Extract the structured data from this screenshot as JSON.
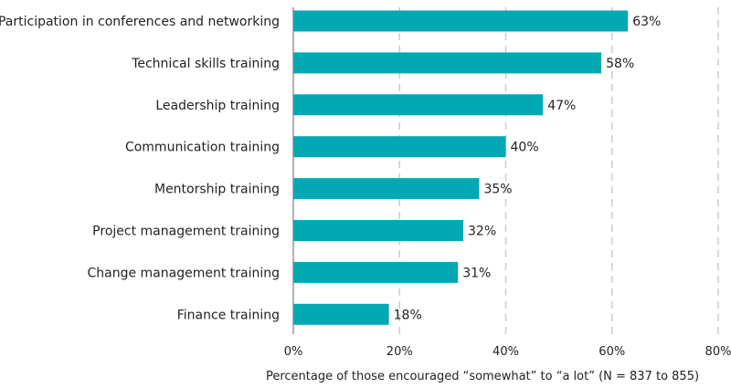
{
  "chart_data": {
    "type": "bar",
    "orientation": "horizontal",
    "categories": [
      "Participation in conferences and networking",
      "Technical skills training",
      "Leadership training",
      "Communication training",
      "Mentorship training",
      "Project management training",
      "Change management training",
      "Finance training"
    ],
    "values": [
      63,
      58,
      47,
      40,
      35,
      32,
      31,
      18
    ],
    "value_labels": [
      "63%",
      "58%",
      "47%",
      "40%",
      "35%",
      "32%",
      "31%",
      "18%"
    ],
    "xlabel": "Percentage of those encouraged “somewhat” to “a lot” (N = 837 to 855)",
    "xlim": [
      0,
      80
    ],
    "ticks": [
      0,
      20,
      40,
      60,
      80
    ],
    "tick_labels": [
      "0%",
      "20%",
      "40%",
      "60%",
      "80%"
    ],
    "grid": true,
    "bar_color": "#00a9b4",
    "grid_color": "#cccccc"
  }
}
